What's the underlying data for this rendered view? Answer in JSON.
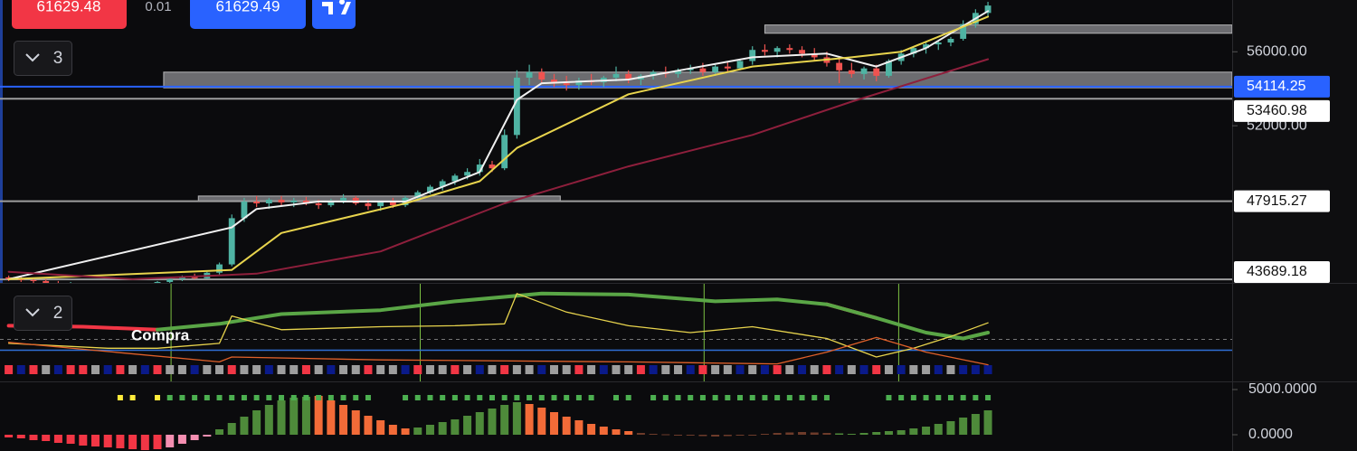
{
  "toolbar": {
    "bid": "61629.48",
    "spread": "0.01",
    "ask": "61629.49",
    "pane_buttons": [
      "3",
      "2"
    ]
  },
  "chart_data": [
    {
      "type": "candlestick",
      "xlim": [
        -0.7,
        98.7
      ],
      "ylim": [
        43500,
        58800
      ],
      "yticks": [
        {
          "value": 56000,
          "label": "56000.00"
        },
        {
          "value": 52000,
          "label": "52000.00"
        }
      ],
      "up_color": "#4fb3a3",
      "down_color": "#ef5350",
      "open": [
        43800,
        43700,
        43650,
        43600,
        43500,
        43400,
        43450,
        43300,
        43350,
        43250,
        43350,
        43300,
        43450,
        43550,
        43700,
        43850,
        43750,
        44050,
        44500,
        47000,
        47900,
        47800,
        48000,
        47850,
        47950,
        47800,
        47700,
        47950,
        48100,
        47800,
        47650,
        47900,
        47700,
        48100,
        48400,
        48700,
        49000,
        49300,
        49500,
        49900,
        49700,
        51500,
        54600,
        54900,
        54500,
        54300,
        54200,
        54450,
        54350,
        54600,
        54800,
        54500,
        54700,
        54900,
        54800,
        55000,
        55100,
        54900,
        55200,
        55100,
        55500,
        56100,
        56000,
        56200,
        56100,
        55900,
        55700,
        55400,
        55000,
        54800,
        55100,
        54700,
        55500,
        55900,
        56200,
        56400,
        56500,
        56700,
        57500,
        58100
      ],
      "high": [
        43900,
        43850,
        43750,
        43700,
        43600,
        43550,
        43500,
        43450,
        43400,
        43400,
        43450,
        43500,
        43600,
        43750,
        43900,
        44000,
        44100,
        44600,
        47200,
        48100,
        48200,
        48100,
        48200,
        48100,
        48150,
        48000,
        48050,
        48300,
        48200,
        48000,
        47950,
        48100,
        48200,
        48500,
        48800,
        49100,
        49400,
        49700,
        50200,
        50100,
        51800,
        55000,
        55300,
        55100,
        54800,
        54700,
        54600,
        54800,
        54700,
        55200,
        55000,
        54800,
        55000,
        55200,
        55100,
        55300,
        55400,
        55300,
        55500,
        55600,
        56300,
        56400,
        56300,
        56400,
        56300,
        56200,
        56000,
        55700,
        55400,
        55200,
        55300,
        55600,
        56100,
        56300,
        56500,
        56600,
        56800,
        57700,
        58300,
        58700
      ],
      "low": [
        43600,
        43550,
        43500,
        43400,
        43300,
        43300,
        43250,
        43200,
        43150,
        43150,
        43200,
        43250,
        43350,
        43450,
        43600,
        43700,
        43700,
        43950,
        44400,
        46800,
        47600,
        47500,
        47700,
        47600,
        47700,
        47500,
        47600,
        47800,
        47700,
        47450,
        47400,
        47550,
        47600,
        48000,
        48300,
        48500,
        48800,
        49100,
        49300,
        49500,
        49600,
        51300,
        54200,
        54300,
        54100,
        53900,
        53950,
        54200,
        54100,
        54400,
        54300,
        54200,
        54500,
        54600,
        54600,
        54800,
        54700,
        54700,
        54900,
        55000,
        55300,
        55800,
        55700,
        55900,
        55700,
        55500,
        55200,
        54300,
        54600,
        54500,
        54400,
        54600,
        55300,
        55700,
        55900,
        56100,
        56300,
        56600,
        57300,
        57900
      ],
      "close": [
        43700,
        43650,
        43600,
        43500,
        43400,
        43450,
        43300,
        43350,
        43250,
        43350,
        43300,
        43450,
        43550,
        43700,
        43850,
        43750,
        44050,
        44500,
        47000,
        47900,
        47800,
        48000,
        47850,
        47950,
        47800,
        47700,
        47950,
        48100,
        47800,
        47650,
        47900,
        47700,
        48100,
        48400,
        48700,
        49000,
        49300,
        49500,
        49900,
        49700,
        51500,
        54600,
        54900,
        54500,
        54300,
        54200,
        54450,
        54350,
        54600,
        54800,
        54500,
        54700,
        54900,
        54800,
        55000,
        55100,
        54900,
        55200,
        55100,
        55500,
        56100,
        56000,
        56200,
        56100,
        55900,
        55700,
        55400,
        55000,
        54800,
        55100,
        54700,
        55500,
        55900,
        56200,
        56400,
        56500,
        56700,
        57500,
        58100,
        58500
      ],
      "lines": [
        {
          "color": "#f0f0f0",
          "x": [
            0,
            18,
            20,
            25,
            32,
            38,
            41,
            43,
            50,
            60,
            66,
            70,
            74,
            79
          ],
          "values": [
            43700,
            46500,
            47500,
            47900,
            47900,
            49500,
            53400,
            54300,
            54500,
            55700,
            55900,
            55200,
            56200,
            58200
          ]
        },
        {
          "color": "#e8d44d",
          "x": [
            0,
            18,
            22,
            32,
            38,
            41,
            50,
            60,
            68,
            72,
            79
          ],
          "values": [
            43700,
            44200,
            46200,
            47800,
            49000,
            50800,
            53700,
            55200,
            55700,
            56000,
            57900
          ]
        },
        {
          "color": "#8e1f3c",
          "x": [
            0,
            10,
            20,
            30,
            40,
            50,
            60,
            68,
            79
          ],
          "values": [
            44100,
            43700,
            44000,
            45200,
            47800,
            49800,
            51500,
            53300,
            55600
          ]
        }
      ],
      "zones": [
        {
          "x": [
            12.5,
            98.7
          ],
          "range": [
            54050,
            54900
          ]
        },
        {
          "x": [
            15.3,
            44.5
          ],
          "range": [
            47900,
            48200
          ]
        },
        {
          "x": [
            61,
            98.7
          ],
          "range": [
            57000,
            57450
          ]
        }
      ],
      "levels": [
        {
          "value": 54114.25,
          "color": "#2962ff"
        },
        {
          "value": 53460.98,
          "color": "#9e9e9e"
        },
        {
          "value": 47915.27,
          "color": "#9e9e9e"
        },
        {
          "value": 43689.18,
          "color": "#9e9e9e"
        }
      ]
    },
    {
      "type": "line",
      "ylim": [
        0,
        100
      ],
      "series": [
        {
          "color": "#f23645",
          "width": 4,
          "x": [
            0,
            6,
            12,
            17,
            22,
            30,
            36,
            43,
            50,
            57,
            62,
            66,
            70,
            74,
            77,
            79
          ],
          "values": [
            57,
            56,
            53,
            null,
            null,
            null,
            null,
            null,
            null,
            null,
            null,
            79,
            65,
            null,
            null,
            null
          ]
        },
        {
          "color": "#5aa646",
          "width": 4,
          "x": [
            0,
            6,
            12,
            17,
            22,
            30,
            36,
            43,
            50,
            57,
            62,
            66,
            70,
            74,
            77,
            79
          ],
          "values": [
            null,
            null,
            53,
            59,
            69,
            73,
            82,
            90,
            89,
            82,
            84,
            79,
            65,
            50,
            44,
            50
          ]
        },
        {
          "color": "#e8d44d",
          "width": 1.3,
          "x": [
            0,
            8,
            12,
            17,
            18,
            22,
            30,
            36,
            40,
            41,
            45,
            50,
            55,
            60,
            66,
            70,
            73,
            76,
            79
          ],
          "values": [
            39,
            34,
            34,
            39,
            67,
            53,
            56,
            57,
            59,
            90,
            71,
            57,
            50,
            56,
            44,
            25,
            34,
            46,
            60
          ]
        },
        {
          "color": "#e0602a",
          "width": 1.3,
          "x": [
            0,
            17,
            18,
            30,
            50,
            62,
            66,
            70,
            74,
            79
          ],
          "values": [
            40,
            20,
            25,
            22,
            20,
            18,
            30,
            45,
            30,
            17
          ]
        }
      ],
      "hlines": [
        {
          "value": 32,
          "color": "#2f6fd6",
          "dashed": false
        },
        {
          "value": 43,
          "color": "#777777",
          "dashed": true
        }
      ],
      "signals": [
        13.1,
        33.2,
        56.1,
        71.8
      ],
      "signal_color": "#7cc142",
      "annotation": "Compra",
      "status_colors": [
        "#f23645",
        "#0a1a8a",
        "#f23645",
        "#9e9e9e",
        "#0a1a8a",
        "#f23645",
        "#f23645",
        "#9e9e9e",
        "#0a1a8a",
        "#f23645",
        "#9e9e9e",
        "#0a1a8a",
        "#f23645",
        "#9e9e9e",
        "#9e9e9e",
        "#0a1a8a",
        "#9e9e9e",
        "#9e9e9e",
        "#f23645",
        "#9e9e9e",
        "#9e9e9e",
        "#0a1a8a",
        "#9e9e9e",
        "#9e9e9e",
        "#f23645",
        "#9e9e9e",
        "#0a1a8a",
        "#9e9e9e",
        "#9e9e9e",
        "#f23645",
        "#9e9e9e",
        "#9e9e9e",
        "#0a1a8a",
        "#f23645",
        "#9e9e9e",
        "#9e9e9e",
        "#f23645",
        "#9e9e9e",
        "#0a1a8a",
        "#9e9e9e",
        "#f23645",
        "#9e9e9e",
        "#9e9e9e",
        "#0a1a8a",
        "#9e9e9e",
        "#9e9e9e",
        "#f23645",
        "#9e9e9e",
        "#0a1a8a",
        "#9e9e9e",
        "#9e9e9e",
        "#f23645",
        "#0a1a8a",
        "#9e9e9e",
        "#9e9e9e",
        "#0a1a8a",
        "#f23645",
        "#9e9e9e",
        "#9e9e9e",
        "#0a1a8a",
        "#9e9e9e",
        "#0a1a8a",
        "#f23645",
        "#9e9e9e",
        "#0a1a8a",
        "#9e9e9e",
        "#f23645",
        "#0a1a8a",
        "#9e9e9e",
        "#0a1a8a",
        "#f23645",
        "#9e9e9e",
        "#0a1a8a",
        "#9e9e9e",
        "#9e9e9e",
        "#0a1a8a",
        "#9e9e9e",
        "#0a1a8a",
        "#0a1a8a",
        "#0a1a8a"
      ]
    },
    {
      "type": "bar",
      "ylim": [
        -1800,
        5800
      ],
      "yticks": [
        {
          "value": 5000,
          "label": "5000.0000"
        },
        {
          "value": 0,
          "label": "0.0000"
        }
      ],
      "values": [
        -300,
        -400,
        -600,
        -700,
        -900,
        -1000,
        -1200,
        -1300,
        -1400,
        -1500,
        -1600,
        -1700,
        -1600,
        -1400,
        -1000,
        -600,
        -200,
        600,
        1300,
        2000,
        2700,
        3300,
        3800,
        4100,
        4200,
        4300,
        3800,
        3300,
        2700,
        2100,
        1600,
        1100,
        700,
        800,
        1100,
        1400,
        1700,
        2100,
        2500,
        2900,
        3300,
        3600,
        3400,
        3000,
        2500,
        2000,
        1600,
        1200,
        900,
        600,
        400,
        200,
        100,
        50,
        -50,
        -100,
        -150,
        -200,
        -150,
        -100,
        -50,
        100,
        200,
        250,
        300,
        250,
        200,
        150,
        100,
        200,
        300,
        400,
        500,
        700,
        900,
        1200,
        1500,
        1900,
        2300,
        2700
      ],
      "colors": [
        "#f23645",
        "#f23645",
        "#f23645",
        "#f23645",
        "#f23645",
        "#f23645",
        "#f23645",
        "#f23645",
        "#f23645",
        "#f23645",
        "#f23645",
        "#f23645",
        "#f23645",
        "#f48fb1",
        "#f48fb1",
        "#f48fb1",
        "#f48fb1",
        "#4e8a3a",
        "#4e8a3a",
        "#4e8a3a",
        "#4e8a3a",
        "#4e8a3a",
        "#4e8a3a",
        "#4e8a3a",
        "#4e8a3a",
        "#f26b38",
        "#f26b38",
        "#f26b38",
        "#f26b38",
        "#f26b38",
        "#f26b38",
        "#f26b38",
        "#f26b38",
        "#4e8a3a",
        "#4e8a3a",
        "#4e8a3a",
        "#4e8a3a",
        "#4e8a3a",
        "#4e8a3a",
        "#4e8a3a",
        "#4e8a3a",
        "#4e8a3a",
        "#f26b38",
        "#f26b38",
        "#f26b38",
        "#f26b38",
        "#f26b38",
        "#f26b38",
        "#f26b38",
        "#f26b38",
        "#f26b38",
        "#6d3b2a",
        "#6d3b2a",
        "#6d3b2a",
        "#6d3b2a",
        "#6d3b2a",
        "#6d3b2a",
        "#6d3b2a",
        "#6d3b2a",
        "#6d3b2a",
        "#6d3b2a",
        "#6d3b2a",
        "#6d3b2a",
        "#6d3b2a",
        "#6d3b2a",
        "#6d3b2a",
        "#6d3b2a",
        "#4e8a3a",
        "#4e8a3a",
        "#4e8a3a",
        "#4e8a3a",
        "#4e8a3a",
        "#4e8a3a",
        "#4e8a3a",
        "#4e8a3a",
        "#4e8a3a",
        "#4e8a3a",
        "#4e8a3a",
        "#4e8a3a",
        "#4e8a3a"
      ],
      "dots": [
        null,
        null,
        null,
        null,
        null,
        null,
        null,
        null,
        null,
        "#ffeb3b",
        "#ffeb3b",
        null,
        "#ffeb3b",
        "#4caf50",
        "#4caf50",
        "#4caf50",
        "#4caf50",
        "#4caf50",
        "#4caf50",
        "#4caf50",
        "#4caf50",
        "#4caf50",
        "#4caf50",
        "#4caf50",
        "#4caf50",
        "#4caf50",
        "#4caf50",
        "#4caf50",
        "#4caf50",
        "#4caf50",
        null,
        null,
        "#4caf50",
        "#4caf50",
        "#4caf50",
        "#4caf50",
        "#4caf50",
        "#4caf50",
        "#4caf50",
        "#4caf50",
        "#4caf50",
        "#4caf50",
        "#4caf50",
        "#4caf50",
        "#4caf50",
        "#4caf50",
        "#4caf50",
        "#4caf50",
        null,
        "#4caf50",
        "#4caf50",
        null,
        "#4caf50",
        "#4caf50",
        "#4caf50",
        "#4caf50",
        "#4caf50",
        "#4caf50",
        "#4caf50",
        "#4caf50",
        "#4caf50",
        "#4caf50",
        "#4caf50",
        "#4caf50",
        "#4caf50",
        "#4caf50",
        "#4caf50",
        null,
        null,
        null,
        null,
        "#4caf50",
        "#4caf50",
        "#4caf50",
        "#4caf50",
        "#4caf50",
        "#4caf50",
        "#4caf50",
        "#4caf50",
        "#4caf50"
      ]
    }
  ]
}
